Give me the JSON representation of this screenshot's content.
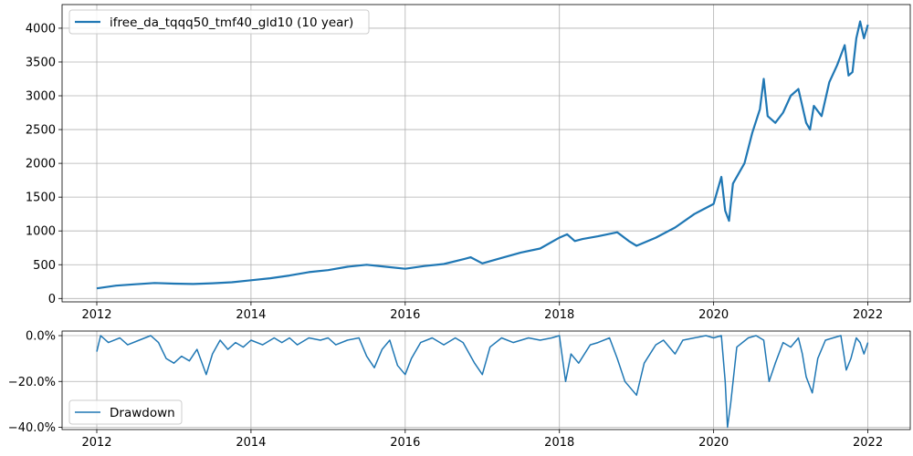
{
  "chart_data": [
    {
      "type": "line",
      "title": "",
      "xlabel": "",
      "ylabel": "",
      "x_ticks": [
        "2012",
        "2014",
        "2016",
        "2018",
        "2020",
        "2022"
      ],
      "x_tick_values": [
        2012,
        2014,
        2016,
        2018,
        2020,
        2022
      ],
      "y_ticks": [
        "0",
        "500",
        "1000",
        "1500",
        "2000",
        "2500",
        "3000",
        "3500",
        "4000"
      ],
      "y_tick_values": [
        0,
        500,
        1000,
        1500,
        2000,
        2500,
        3000,
        3500,
        4000
      ],
      "xlim": [
        2011.55,
        2022.55
      ],
      "ylim": [
        -50,
        4350
      ],
      "grid": true,
      "legend": {
        "position": "top-left",
        "entries": [
          "ifree_da_tqqq50_tmf40_gld10 (10 year)"
        ]
      },
      "series": [
        {
          "name": "ifree_da_tqqq50_tmf40_gld10 (10 year)",
          "color": "#1f77b4",
          "x": [
            2012.0,
            2012.25,
            2012.5,
            2012.75,
            2013.0,
            2013.25,
            2013.5,
            2013.75,
            2014.0,
            2014.25,
            2014.5,
            2014.75,
            2015.0,
            2015.25,
            2015.5,
            2015.75,
            2016.0,
            2016.25,
            2016.5,
            2016.75,
            2016.85,
            2017.0,
            2017.25,
            2017.5,
            2017.75,
            2018.0,
            2018.1,
            2018.2,
            2018.3,
            2018.5,
            2018.75,
            2018.9,
            2019.0,
            2019.25,
            2019.5,
            2019.75,
            2020.0,
            2020.1,
            2020.15,
            2020.2,
            2020.25,
            2020.4,
            2020.5,
            2020.6,
            2020.65,
            2020.7,
            2020.8,
            2020.9,
            2021.0,
            2021.1,
            2021.2,
            2021.25,
            2021.3,
            2021.4,
            2021.5,
            2021.6,
            2021.65,
            2021.7,
            2021.75,
            2021.8,
            2021.85,
            2021.9,
            2021.95,
            2022.0
          ],
          "values": [
            150,
            190,
            210,
            230,
            220,
            215,
            225,
            240,
            270,
            300,
            340,
            390,
            420,
            470,
            500,
            470,
            440,
            480,
            510,
            580,
            610,
            520,
            600,
            680,
            740,
            900,
            950,
            850,
            880,
            920,
            980,
            850,
            780,
            900,
            1050,
            1250,
            1400,
            1800,
            1300,
            1150,
            1700,
            2000,
            2450,
            2800,
            3250,
            2700,
            2600,
            2750,
            3000,
            3100,
            2600,
            2500,
            2850,
            2700,
            3200,
            3450,
            3600,
            3750,
            3300,
            3350,
            3850,
            4100,
            3850,
            4050
          ]
        }
      ]
    },
    {
      "type": "line",
      "title": "",
      "xlabel": "",
      "ylabel": "",
      "x_ticks": [
        "2012",
        "2014",
        "2016",
        "2018",
        "2020",
        "2022"
      ],
      "x_tick_values": [
        2012,
        2014,
        2016,
        2018,
        2020,
        2022
      ],
      "y_ticks": [
        "0.0%",
        "−20.0%",
        "−40.0%"
      ],
      "y_tick_values": [
        0,
        -20,
        -40
      ],
      "xlim": [
        2011.55,
        2022.55
      ],
      "ylim": [
        -41,
        2
      ],
      "grid": true,
      "legend": {
        "position": "bottom-left",
        "entries": [
          "Drawdown"
        ]
      },
      "series": [
        {
          "name": "Drawdown",
          "color": "#1f77b4",
          "x": [
            2012.0,
            2012.05,
            2012.15,
            2012.3,
            2012.4,
            2012.55,
            2012.7,
            2012.8,
            2012.9,
            2013.0,
            2013.1,
            2013.2,
            2013.3,
            2013.42,
            2013.5,
            2013.6,
            2013.7,
            2013.8,
            2013.9,
            2014.0,
            2014.15,
            2014.3,
            2014.4,
            2014.5,
            2014.6,
            2014.75,
            2014.9,
            2015.0,
            2015.1,
            2015.25,
            2015.4,
            2015.5,
            2015.6,
            2015.7,
            2015.8,
            2015.9,
            2016.0,
            2016.08,
            2016.2,
            2016.35,
            2016.5,
            2016.65,
            2016.75,
            2016.9,
            2017.0,
            2017.1,
            2017.25,
            2017.4,
            2017.6,
            2017.75,
            2017.9,
            2018.0,
            2018.08,
            2018.15,
            2018.25,
            2018.4,
            2018.5,
            2018.65,
            2018.75,
            2018.85,
            2018.95,
            2019.0,
            2019.1,
            2019.25,
            2019.35,
            2019.5,
            2019.6,
            2019.75,
            2019.9,
            2020.0,
            2020.1,
            2020.15,
            2020.18,
            2020.22,
            2020.3,
            2020.45,
            2020.55,
            2020.65,
            2020.72,
            2020.8,
            2020.9,
            2021.0,
            2021.1,
            2021.15,
            2021.2,
            2021.28,
            2021.35,
            2021.45,
            2021.55,
            2021.65,
            2021.72,
            2021.78,
            2021.85,
            2021.9,
            2021.95,
            2022.0
          ],
          "values": [
            -7,
            0,
            -3,
            -1,
            -4,
            -2,
            0,
            -3,
            -10,
            -12,
            -9,
            -11,
            -6,
            -17,
            -8,
            -2,
            -6,
            -3,
            -5,
            -2,
            -4,
            -1,
            -3,
            -1,
            -4,
            -1,
            -2,
            -1,
            -4,
            -2,
            -1,
            -9,
            -14,
            -6,
            -2,
            -13,
            -17,
            -10,
            -3,
            -1,
            -4,
            -1,
            -3,
            -12,
            -17,
            -5,
            -1,
            -3,
            -1,
            -2,
            -1,
            0,
            -20,
            -8,
            -12,
            -4,
            -3,
            -1,
            -10,
            -20,
            -24,
            -26,
            -12,
            -4,
            -2,
            -8,
            -2,
            -1,
            0,
            -1,
            0,
            -20,
            -40,
            -30,
            -5,
            -1,
            0,
            -2,
            -20,
            -12,
            -3,
            -5,
            -1,
            -8,
            -18,
            -25,
            -10,
            -2,
            -1,
            0,
            -15,
            -10,
            -1,
            -3,
            -8,
            -3
          ]
        }
      ]
    }
  ]
}
